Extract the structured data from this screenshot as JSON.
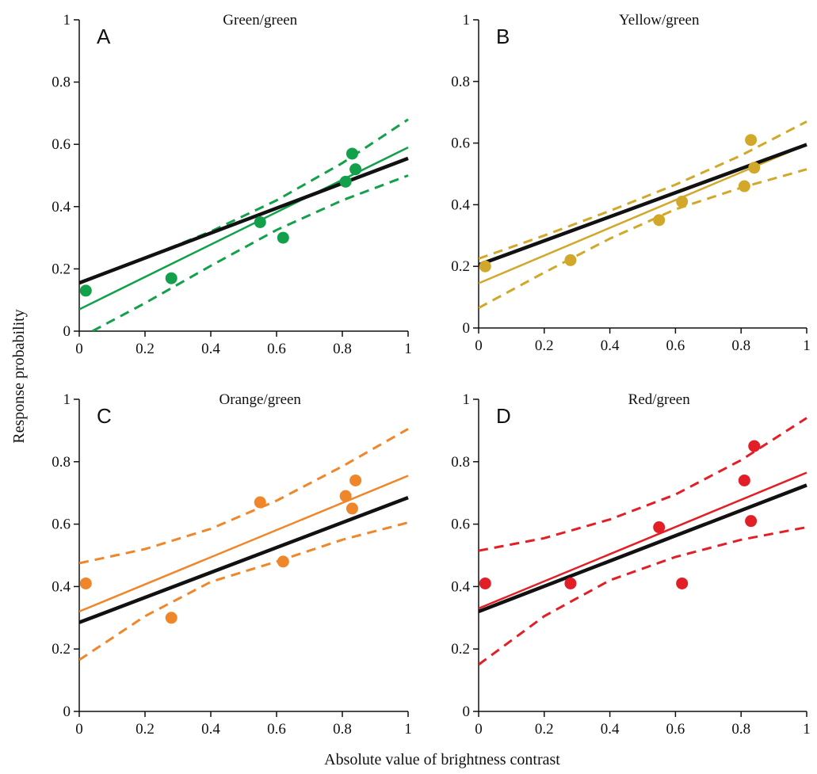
{
  "figure": {
    "xlabel": "Absolute value of brightness contrast",
    "ylabel": "Response probability"
  },
  "chart_data": [
    {
      "type": "scatter",
      "letter": "A",
      "title": "Green/green",
      "color": "#12a14a",
      "xlim": [
        0,
        1
      ],
      "ylim": [
        0,
        1
      ],
      "xticks": [
        "0",
        "0.2",
        "0.4",
        "0.6",
        "0.8",
        "1"
      ],
      "yticks": [
        "0",
        "0.2",
        "0.4",
        "0.6",
        "0.8",
        "1"
      ],
      "points": [
        [
          0.02,
          0.13
        ],
        [
          0.28,
          0.17
        ],
        [
          0.55,
          0.35
        ],
        [
          0.62,
          0.3
        ],
        [
          0.81,
          0.48
        ],
        [
          0.83,
          0.57
        ],
        [
          0.84,
          0.52
        ]
      ],
      "fit_line": [
        [
          0,
          0.07
        ],
        [
          1,
          0.59
        ]
      ],
      "reference_line": [
        [
          0,
          0.155
        ],
        [
          1,
          0.555
        ]
      ],
      "ci_upper": [
        [
          0,
          0.155
        ],
        [
          0.2,
          0.235
        ],
        [
          0.4,
          0.32
        ],
        [
          0.6,
          0.42
        ],
        [
          0.8,
          0.54
        ],
        [
          1,
          0.68
        ]
      ],
      "ci_lower": [
        [
          0.04,
          0.0
        ],
        [
          0.2,
          0.09
        ],
        [
          0.4,
          0.21
        ],
        [
          0.6,
          0.325
        ],
        [
          0.8,
          0.42
        ],
        [
          1,
          0.5
        ]
      ],
      "grid": false
    },
    {
      "type": "scatter",
      "letter": "B",
      "title": "Yellow/green",
      "color": "#d1a82a",
      "xlim": [
        0,
        1
      ],
      "ylim": [
        0,
        1
      ],
      "xticks": [
        "0",
        "0.2",
        "0.4",
        "0.6",
        "0.8",
        "1"
      ],
      "yticks": [
        "0",
        "0.2",
        "0.4",
        "0.6",
        "0.8",
        "1"
      ],
      "points": [
        [
          0.02,
          0.2
        ],
        [
          0.28,
          0.22
        ],
        [
          0.55,
          0.35
        ],
        [
          0.62,
          0.41
        ],
        [
          0.81,
          0.46
        ],
        [
          0.83,
          0.61
        ],
        [
          0.84,
          0.52
        ]
      ],
      "fit_line": [
        [
          0,
          0.145
        ],
        [
          1,
          0.595
        ]
      ],
      "reference_line": [
        [
          0,
          0.205
        ],
        [
          1,
          0.595
        ]
      ],
      "ci_upper": [
        [
          0,
          0.225
        ],
        [
          0.2,
          0.3
        ],
        [
          0.4,
          0.38
        ],
        [
          0.6,
          0.465
        ],
        [
          0.8,
          0.56
        ],
        [
          1,
          0.67
        ]
      ],
      "ci_lower": [
        [
          0,
          0.065
        ],
        [
          0.2,
          0.18
        ],
        [
          0.4,
          0.29
        ],
        [
          0.6,
          0.385
        ],
        [
          0.8,
          0.455
        ],
        [
          1,
          0.515
        ]
      ],
      "grid": false
    },
    {
      "type": "scatter",
      "letter": "C",
      "title": "Orange/green",
      "color": "#f0862a",
      "xlim": [
        0,
        1
      ],
      "ylim": [
        0,
        1
      ],
      "xticks": [
        "0",
        "0.2",
        "0.4",
        "0.6",
        "0.8",
        "1"
      ],
      "yticks": [
        "0",
        "0.2",
        "0.4",
        "0.6",
        "0.8",
        "1"
      ],
      "points": [
        [
          0.02,
          0.41
        ],
        [
          0.28,
          0.3
        ],
        [
          0.55,
          0.67
        ],
        [
          0.62,
          0.48
        ],
        [
          0.81,
          0.69
        ],
        [
          0.83,
          0.65
        ],
        [
          0.84,
          0.74
        ]
      ],
      "fit_line": [
        [
          0,
          0.32
        ],
        [
          1,
          0.755
        ]
      ],
      "reference_line": [
        [
          0,
          0.285
        ],
        [
          1,
          0.685
        ]
      ],
      "ci_upper": [
        [
          0,
          0.475
        ],
        [
          0.2,
          0.52
        ],
        [
          0.4,
          0.585
        ],
        [
          0.6,
          0.675
        ],
        [
          0.8,
          0.785
        ],
        [
          1,
          0.905
        ]
      ],
      "ci_lower": [
        [
          0,
          0.165
        ],
        [
          0.2,
          0.305
        ],
        [
          0.4,
          0.415
        ],
        [
          0.6,
          0.48
        ],
        [
          0.8,
          0.55
        ],
        [
          1,
          0.605
        ]
      ],
      "grid": false
    },
    {
      "type": "scatter",
      "letter": "D",
      "title": "Red/green",
      "color": "#e21f26",
      "xlim": [
        0,
        1
      ],
      "ylim": [
        0,
        1
      ],
      "xticks": [
        "0",
        "0.2",
        "0.4",
        "0.6",
        "0.8",
        "1"
      ],
      "yticks": [
        "0",
        "0.2",
        "0.4",
        "0.6",
        "0.8",
        "1"
      ],
      "points": [
        [
          0.02,
          0.41
        ],
        [
          0.28,
          0.41
        ],
        [
          0.55,
          0.59
        ],
        [
          0.62,
          0.41
        ],
        [
          0.81,
          0.74
        ],
        [
          0.83,
          0.61
        ],
        [
          0.84,
          0.85
        ]
      ],
      "fit_line": [
        [
          0,
          0.33
        ],
        [
          1,
          0.765
        ]
      ],
      "reference_line": [
        [
          0,
          0.32
        ],
        [
          1,
          0.725
        ]
      ],
      "ci_upper": [
        [
          0,
          0.515
        ],
        [
          0.2,
          0.555
        ],
        [
          0.4,
          0.615
        ],
        [
          0.6,
          0.695
        ],
        [
          0.8,
          0.805
        ],
        [
          1,
          0.94
        ]
      ],
      "ci_lower": [
        [
          0,
          0.15
        ],
        [
          0.2,
          0.305
        ],
        [
          0.4,
          0.42
        ],
        [
          0.6,
          0.495
        ],
        [
          0.8,
          0.55
        ],
        [
          1,
          0.59
        ]
      ],
      "grid": false
    }
  ]
}
